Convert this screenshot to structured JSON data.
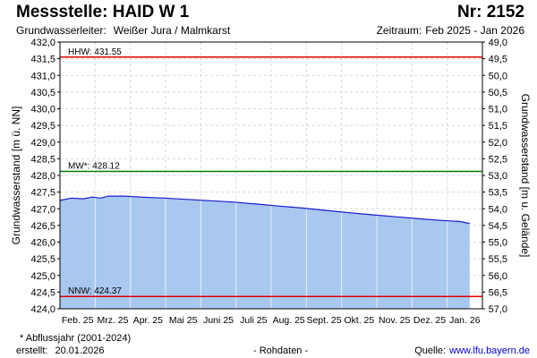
{
  "header": {
    "title": "Messstelle: HAID W 1",
    "number": "Nr: 2152",
    "aquifer_label": "Grundwasserleiter:",
    "aquifer_value": "Weißer Jura / Malmkarst",
    "period_label": "Zeitraum:",
    "period_value": "Feb 2025 - Jan 2026"
  },
  "footer": {
    "note": "* Abflussjahr (2001-2024)",
    "created_label": "erstellt:",
    "created_value": "20.01.2026",
    "raw": "- Rohdaten -",
    "source_label": "Quelle:",
    "source_value": "www.lfu.bayern.de"
  },
  "colors": {
    "fill": "#a8c8f0",
    "line": "#1a1acc",
    "hhw": "#e00000",
    "nnw": "#e00000",
    "mw": "#008000",
    "grid": "#d8d8d8"
  },
  "chart_data": {
    "type": "area",
    "ylabel": "Grundwasserstand [m ü. NN]",
    "y2label": "Grundwasserstand [m u. Gelände]",
    "ylim": [
      424.0,
      432.0
    ],
    "y_ticks": [
      "424,0",
      "424,5",
      "425,0",
      "425,5",
      "426,0",
      "426,5",
      "427,0",
      "427,5",
      "428,0",
      "428,5",
      "429,0",
      "429,5",
      "430,0",
      "430,5",
      "431,0",
      "431,5",
      "432,0"
    ],
    "y2_ticks": [
      "57,0",
      "56,5",
      "56,0",
      "55,5",
      "55,0",
      "54,5",
      "54,0",
      "53,5",
      "53,0",
      "52,5",
      "52,0",
      "51,5",
      "51,0",
      "50,5",
      "50,0",
      "49,5",
      "49,0"
    ],
    "x_ticks": [
      "Feb. 25",
      "Mrz. 25",
      "Apr. 25",
      "Mai 25",
      "Juni 25",
      "Juli 25",
      "Aug. 25",
      "Sept. 25",
      "Okt. 25",
      "Nov. 25",
      "Dez. 25",
      "Jan. 26"
    ],
    "x_range_days": [
      0,
      365
    ],
    "series": [
      {
        "points": [
          [
            0,
            427.25
          ],
          [
            10,
            427.32
          ],
          [
            20,
            427.3
          ],
          [
            28,
            427.35
          ],
          [
            35,
            427.32
          ],
          [
            42,
            427.38
          ],
          [
            55,
            427.38
          ],
          [
            70,
            427.35
          ],
          [
            90,
            427.32
          ],
          [
            110,
            427.28
          ],
          [
            130,
            427.24
          ],
          [
            150,
            427.2
          ],
          [
            170,
            427.14
          ],
          [
            190,
            427.08
          ],
          [
            210,
            427.02
          ],
          [
            230,
            426.95
          ],
          [
            250,
            426.88
          ],
          [
            270,
            426.82
          ],
          [
            290,
            426.76
          ],
          [
            310,
            426.7
          ],
          [
            330,
            426.65
          ],
          [
            345,
            426.62
          ],
          [
            354,
            426.56
          ]
        ]
      }
    ],
    "reference_lines": [
      {
        "label": "HHW: 431.55",
        "value": 431.55,
        "color_key": "hhw"
      },
      {
        "label": "MW*: 428.12",
        "value": 428.12,
        "color_key": "mw"
      },
      {
        "label": "NNW: 424.37",
        "value": 424.37,
        "color_key": "nnw"
      }
    ],
    "grid": true
  }
}
